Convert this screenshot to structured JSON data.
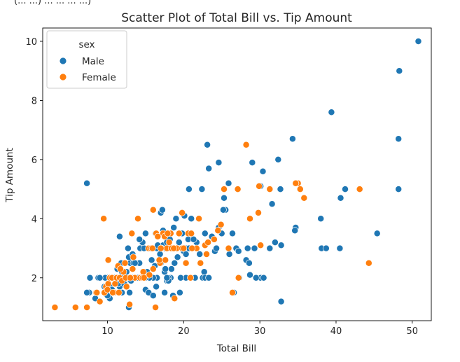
{
  "chart_data": {
    "type": "scatter",
    "title": "Scatter Plot of Total Bill vs. Tip Amount",
    "header_fragment": "(... ...) ... ... ... ...)",
    "xlabel": "Total Bill",
    "ylabel": "Tip Amount",
    "xlim": [
      1.5,
      52.5
    ],
    "ylim": [
      0.55,
      10.45
    ],
    "xticks": [
      10,
      20,
      30,
      40,
      50
    ],
    "yticks": [
      2,
      4,
      6,
      8,
      10
    ],
    "grid": false,
    "legend": {
      "title": "sex",
      "placement": "top-left"
    },
    "series": [
      {
        "name": "Male",
        "color": "#1f77b4",
        "points": [
          [
            50.8,
            10.0
          ],
          [
            48.3,
            9.0
          ],
          [
            48.2,
            6.7
          ],
          [
            48.2,
            5.0
          ],
          [
            39.4,
            7.6
          ],
          [
            34.3,
            6.7
          ],
          [
            23.1,
            6.5
          ],
          [
            29.0,
            5.9
          ],
          [
            32.4,
            6.0
          ],
          [
            30.4,
            5.6
          ],
          [
            24.6,
            5.9
          ],
          [
            23.3,
            5.7
          ],
          [
            25.9,
            5.2
          ],
          [
            30.1,
            5.1
          ],
          [
            32.7,
            5.0
          ],
          [
            20.7,
            5.0
          ],
          [
            22.4,
            5.0
          ],
          [
            25.3,
            4.7
          ],
          [
            40.6,
            4.7
          ],
          [
            41.2,
            5.0
          ],
          [
            7.3,
            5.2
          ],
          [
            31.6,
            4.5
          ],
          [
            25.5,
            4.3
          ],
          [
            25.2,
            4.3
          ],
          [
            38.0,
            4.0
          ],
          [
            34.7,
            3.7
          ],
          [
            34.6,
            3.6
          ],
          [
            45.4,
            3.5
          ],
          [
            28.4,
            3.0
          ],
          [
            31.3,
            3.0
          ],
          [
            38.1,
            3.0
          ],
          [
            38.7,
            3.0
          ],
          [
            40.5,
            3.0
          ],
          [
            32.8,
            3.1
          ],
          [
            29.3,
            3.0
          ],
          [
            32.0,
            3.2
          ],
          [
            21.0,
            4.0
          ],
          [
            20.1,
            4.1
          ],
          [
            22.8,
            3.5
          ],
          [
            24.6,
            3.7
          ],
          [
            19.8,
            3.5
          ],
          [
            18.2,
            3.5
          ],
          [
            15.0,
            3.5
          ],
          [
            11.6,
            3.4
          ],
          [
            26.4,
            3.5
          ],
          [
            17.3,
            3.6
          ],
          [
            16.3,
            3.5
          ],
          [
            19.4,
            3.2
          ],
          [
            20.3,
            3.0
          ],
          [
            17.5,
            3.0
          ],
          [
            18.5,
            3.0
          ],
          [
            15.4,
            3.0
          ],
          [
            14.3,
            3.0
          ],
          [
            13.0,
            2.5
          ],
          [
            20.6,
            3.3
          ],
          [
            21.7,
            3.2
          ],
          [
            26.9,
            3.0
          ],
          [
            24.1,
            2.9
          ],
          [
            27.2,
            2.9
          ],
          [
            28.2,
            2.6
          ],
          [
            27.3,
            2.0
          ],
          [
            30.1,
            2.0
          ],
          [
            30.5,
            2.0
          ],
          [
            32.8,
            1.2
          ],
          [
            28.7,
            2.1
          ],
          [
            26.6,
            1.5
          ],
          [
            22.7,
            2.2
          ],
          [
            22.5,
            2.0
          ],
          [
            22.8,
            2.0
          ],
          [
            20.3,
            2.0
          ],
          [
            19.6,
            2.0
          ],
          [
            21.5,
            2.0
          ],
          [
            23.3,
            2.0
          ],
          [
            18.8,
            2.5
          ],
          [
            18.3,
            2.0
          ],
          [
            18.0,
            2.0
          ],
          [
            16.5,
            2.0
          ],
          [
            16.0,
            2.0
          ],
          [
            15.5,
            2.0
          ],
          [
            15.0,
            2.0
          ],
          [
            14.0,
            2.0
          ],
          [
            13.8,
            2.5
          ],
          [
            13.4,
            2.5
          ],
          [
            12.5,
            2.0
          ],
          [
            12.0,
            2.0
          ],
          [
            11.0,
            2.0
          ],
          [
            10.3,
            2.0
          ],
          [
            10.0,
            2.0
          ],
          [
            9.7,
            2.0
          ],
          [
            8.8,
            2.0
          ],
          [
            7.7,
            2.0
          ],
          [
            10.3,
            1.7
          ],
          [
            10.6,
            1.6
          ],
          [
            11.9,
            1.5
          ],
          [
            11.6,
            1.7
          ],
          [
            12.2,
            1.8
          ],
          [
            13.0,
            1.9
          ],
          [
            13.4,
            2.0
          ],
          [
            15.0,
            1.6
          ],
          [
            15.4,
            1.5
          ],
          [
            16.0,
            1.4
          ],
          [
            17.8,
            1.9
          ],
          [
            17.5,
            1.5
          ],
          [
            17.0,
            2.5
          ],
          [
            15.8,
            2.6
          ],
          [
            16.9,
            2.8
          ],
          [
            17.5,
            2.2
          ],
          [
            16.2,
            2.4
          ],
          [
            12.8,
            2.7
          ],
          [
            12.5,
            2.2
          ],
          [
            11.3,
            2.3
          ],
          [
            11.8,
            2.5
          ],
          [
            12.7,
            3.0
          ],
          [
            13.3,
            2.8
          ],
          [
            14.8,
            3.0
          ],
          [
            15.7,
            3.0
          ],
          [
            17.3,
            3.1
          ],
          [
            17.8,
            3.2
          ],
          [
            17.9,
            3.0
          ],
          [
            16.5,
            3.0
          ],
          [
            14.6,
            3.2
          ],
          [
            14.2,
            3.3
          ],
          [
            19.0,
            4.0
          ],
          [
            17.0,
            4.2
          ],
          [
            17.2,
            4.3
          ],
          [
            20.7,
            3.0
          ],
          [
            19.2,
            2.7
          ],
          [
            18.4,
            2.3
          ],
          [
            18.0,
            1.9
          ],
          [
            19.5,
            1.5
          ],
          [
            20.0,
            2.9
          ],
          [
            18.2,
            3.3
          ],
          [
            9.0,
            2.0
          ],
          [
            9.6,
            1.7
          ],
          [
            9.7,
            1.5
          ],
          [
            10.3,
            1.3
          ],
          [
            8.5,
            1.5
          ],
          [
            7.6,
            1.5
          ],
          [
            7.3,
            1.5
          ],
          [
            8.4,
            1.3
          ],
          [
            12.8,
            1.0
          ],
          [
            11.0,
            1.5
          ],
          [
            11.4,
            1.8
          ],
          [
            12.9,
            1.5
          ],
          [
            13.1,
            1.9
          ],
          [
            14.8,
            2.0
          ],
          [
            14.2,
            2.5
          ],
          [
            15.2,
            2.2
          ],
          [
            16.4,
            1.7
          ],
          [
            17.8,
            2.0
          ],
          [
            18.6,
            1.4
          ],
          [
            17.6,
            2.3
          ],
          [
            21.3,
            3.3
          ],
          [
            20.9,
            3.5
          ],
          [
            22.1,
            2.8
          ],
          [
            25.0,
            3.5
          ],
          [
            23.7,
            3.4
          ],
          [
            24.3,
            3.0
          ],
          [
            29.5,
            2.0
          ],
          [
            26.0,
            2.8
          ],
          [
            28.6,
            2.5
          ],
          [
            20.3,
            2.8
          ],
          [
            18.7,
            3.7
          ],
          [
            16.6,
            3.1
          ],
          [
            10.0,
            1.4
          ],
          [
            10.9,
            2.0
          ],
          [
            11.9,
            2.2
          ],
          [
            13.6,
            2.5
          ]
        ]
      },
      {
        "name": "Female",
        "color": "#ff7f0e",
        "points": [
          [
            3.1,
            1.0
          ],
          [
            5.8,
            1.0
          ],
          [
            7.3,
            1.0
          ],
          [
            8.5,
            1.5
          ],
          [
            9.6,
            1.5
          ],
          [
            9.8,
            1.7
          ],
          [
            10.1,
            1.8
          ],
          [
            10.3,
            2.0
          ],
          [
            10.6,
            2.0
          ],
          [
            10.9,
            1.5
          ],
          [
            11.0,
            1.8
          ],
          [
            11.2,
            2.0
          ],
          [
            11.6,
            2.0
          ],
          [
            11.9,
            1.9
          ],
          [
            12.4,
            2.0
          ],
          [
            12.9,
            1.1
          ],
          [
            13.3,
            2.3
          ],
          [
            13.6,
            2.0
          ],
          [
            14.3,
            2.0
          ],
          [
            14.7,
            2.2
          ],
          [
            15.4,
            3.0
          ],
          [
            15.7,
            3.0
          ],
          [
            16.0,
            2.3
          ],
          [
            16.3,
            1.0
          ],
          [
            16.4,
            3.5
          ],
          [
            16.9,
            2.5
          ],
          [
            17.1,
            3.0
          ],
          [
            17.3,
            3.5
          ],
          [
            17.6,
            2.6
          ],
          [
            17.8,
            3.0
          ],
          [
            18.3,
            3.5
          ],
          [
            18.6,
            3.0
          ],
          [
            18.8,
            1.3
          ],
          [
            19.4,
            3.5
          ],
          [
            19.8,
            4.2
          ],
          [
            20.3,
            2.5
          ],
          [
            20.6,
            3.5
          ],
          [
            21.0,
            3.5
          ],
          [
            21.7,
            3.0
          ],
          [
            22.2,
            2.5
          ],
          [
            22.8,
            3.1
          ],
          [
            23.2,
            3.2
          ],
          [
            24.5,
            3.6
          ],
          [
            24.9,
            3.8
          ],
          [
            25.3,
            5.0
          ],
          [
            25.9,
            3.0
          ],
          [
            26.4,
            1.5
          ],
          [
            27.1,
            5.0
          ],
          [
            27.2,
            2.0
          ],
          [
            28.2,
            6.5
          ],
          [
            28.7,
            4.0
          ],
          [
            29.8,
            4.2
          ],
          [
            29.9,
            5.1
          ],
          [
            30.1,
            3.1
          ],
          [
            31.3,
            5.0
          ],
          [
            35.0,
            5.2
          ],
          [
            35.3,
            5.0
          ],
          [
            35.8,
            4.7
          ],
          [
            43.1,
            5.0
          ],
          [
            44.3,
            2.5
          ],
          [
            34.7,
            5.2
          ],
          [
            16.0,
            4.3
          ],
          [
            14.0,
            4.0
          ],
          [
            13.2,
            3.5
          ],
          [
            12.3,
            2.5
          ],
          [
            11.4,
            2.4
          ],
          [
            10.1,
            2.6
          ],
          [
            9.5,
            4.0
          ],
          [
            8.6,
            1.5
          ],
          [
            9.0,
            1.2
          ],
          [
            10.0,
            1.6
          ],
          [
            11.5,
            1.5
          ],
          [
            12.5,
            1.7
          ],
          [
            13.0,
            2.0
          ],
          [
            14.6,
            2.0
          ],
          [
            15.5,
            2.1
          ],
          [
            16.8,
            2.6
          ],
          [
            17.5,
            3.4
          ],
          [
            17.9,
            3.5
          ],
          [
            18.4,
            3.0
          ],
          [
            19.1,
            3.0
          ],
          [
            20.9,
            2.0
          ],
          [
            22.0,
            4.0
          ],
          [
            23.0,
            2.8
          ],
          [
            24.0,
            3.3
          ],
          [
            19.8,
            3.0
          ],
          [
            16.6,
            3.4
          ],
          [
            15.9,
            3.0
          ],
          [
            14.8,
            2.0
          ],
          [
            13.4,
            2.7
          ],
          [
            12.1,
            2.2
          ],
          [
            11.7,
            2.3
          ],
          [
            10.7,
            1.5
          ],
          [
            18.1,
            3.2
          ],
          [
            20.0,
            3.0
          ],
          [
            21.1,
            3.0
          ],
          [
            17.0,
            3.0
          ],
          [
            18.7,
            3.0
          ]
        ]
      }
    ]
  }
}
